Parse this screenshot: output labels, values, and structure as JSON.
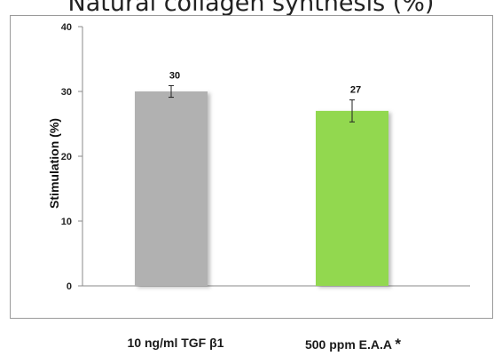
{
  "chart_data": {
    "type": "bar",
    "title": "Natural collagen synthesis (%)",
    "xlabel": "",
    "ylabel": "Stimulation (%)",
    "categories": [
      "10 ng/ml TGF β1",
      "500 ppm E.A.A *"
    ],
    "values": [
      30,
      27
    ],
    "errors": [
      0.9,
      1.7
    ],
    "data_labels": [
      "30",
      "27"
    ],
    "ylim": [
      0,
      40
    ],
    "yticks": [
      0,
      10,
      20,
      30,
      40
    ],
    "ytick_labels": [
      "0",
      "10",
      "20",
      "30",
      "40"
    ],
    "grid": false,
    "legend": "none",
    "colors": [
      "#b1b1b1",
      "#92d850"
    ]
  }
}
